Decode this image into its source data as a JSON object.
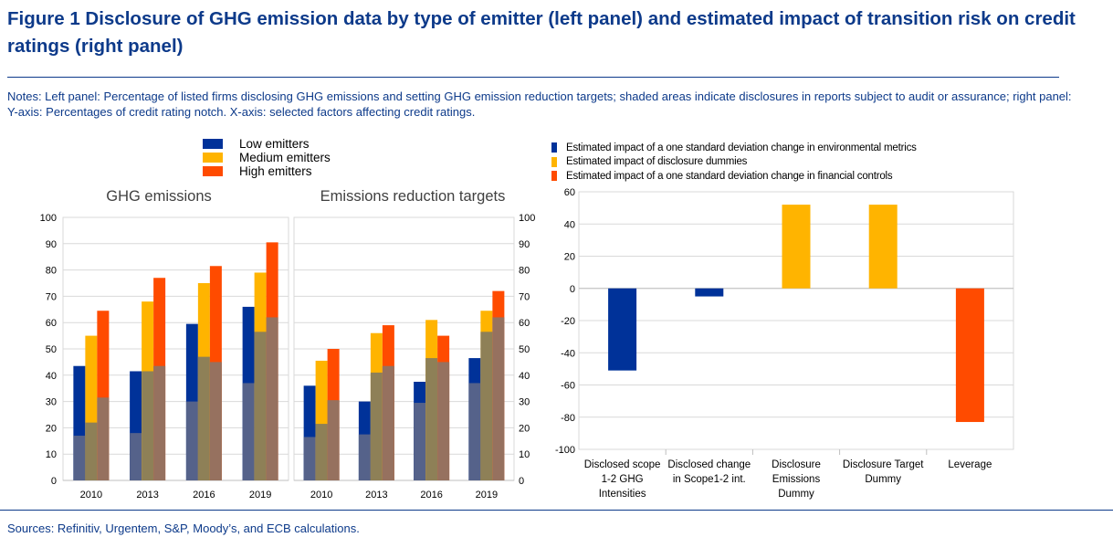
{
  "figure": {
    "title": "Figure 1 Disclosure of GHG emission data by type of emitter (left panel) and estimated impact of transition risk on credit ratings (right panel)",
    "notes": "Notes: Left panel: Percentage of listed firms disclosing GHG emissions and setting GHG emission reduction targets; shaded areas indicate disclosures in reports subject to audit or assurance; right panel: Y-axis: Percentages of credit rating notch. X-axis: selected factors affecting credit ratings.",
    "sources": "Sources: Refinitiv, Urgentem, S&P, Moody’s, and ECB calculations."
  },
  "left_legend": [
    {
      "label": "Low emitters",
      "color": "#003299"
    },
    {
      "label": "Medium emitters",
      "color": "#ffb400"
    },
    {
      "label": "High emitters",
      "color": "#ff4b00"
    }
  ],
  "right_legend": [
    {
      "label": "Estimated impact of a one standard deviation change in  environmental metrics",
      "color": "#003299"
    },
    {
      "label": "Estimated impact of disclosure dummies",
      "color": "#ffb400"
    },
    {
      "label": "Estimated impact of a one standard deviation change in financial controls",
      "color": "#ff4b00"
    }
  ],
  "colors": {
    "low": "#003299",
    "medium": "#ffb400",
    "high": "#ff4b00",
    "shade": "#8c8c8c"
  },
  "chart_data": [
    {
      "type": "bar",
      "title": "GHG emissions",
      "categories": [
        "2010",
        "2013",
        "2016",
        "2019"
      ],
      "series": [
        {
          "name": "Low emitters",
          "values": [
            43.5,
            41.5,
            59.5,
            66
          ],
          "audited": [
            17,
            18,
            30,
            37
          ]
        },
        {
          "name": "Medium emitters",
          "values": [
            55,
            68,
            75,
            79
          ],
          "audited": [
            22,
            41.5,
            47,
            56.5
          ]
        },
        {
          "name": "High emitters",
          "values": [
            64.5,
            77,
            81.5,
            90.5
          ],
          "audited": [
            31.5,
            43.5,
            45,
            62
          ]
        }
      ],
      "ylim": [
        0,
        100
      ],
      "yticks": [
        0,
        10,
        20,
        30,
        40,
        50,
        60,
        70,
        80,
        90,
        100
      ]
    },
    {
      "type": "bar",
      "title": "Emissions reduction targets",
      "categories": [
        "2010",
        "2013",
        "2016",
        "2019"
      ],
      "series": [
        {
          "name": "Low emitters",
          "values": [
            36,
            30,
            37.5,
            46.5
          ],
          "audited": [
            16.5,
            17.5,
            29.5,
            37
          ]
        },
        {
          "name": "Medium emitters",
          "values": [
            45.5,
            56,
            61,
            64.5
          ],
          "audited": [
            21.5,
            41,
            46.5,
            56.5
          ]
        },
        {
          "name": "High emitters",
          "values": [
            50,
            59,
            55,
            72
          ],
          "audited": [
            30.5,
            43.5,
            45,
            62
          ]
        }
      ],
      "ylim": [
        0,
        100
      ],
      "yticks": [
        0,
        10,
        20,
        30,
        40,
        50,
        60,
        70,
        80,
        90,
        100
      ]
    },
    {
      "type": "bar",
      "title": "",
      "categories": [
        "Disclosed scope 1-2 GHG Intensities",
        "Disclosed change in Scope1-2 int.",
        "Disclosure Emissions Dummy",
        "Disclosure Target Dummy",
        "Leverage"
      ],
      "category_lines": [
        [
          "Disclosed scope",
          "1-2 GHG",
          "Intensities"
        ],
        [
          "Disclosed change",
          "in Scope1-2 int."
        ],
        [
          "Disclosure",
          "Emissions",
          "Dummy"
        ],
        [
          "Disclosure Target",
          "Dummy"
        ],
        [
          "Leverage"
        ]
      ],
      "values": [
        -51,
        -5,
        52,
        52,
        -83
      ],
      "bar_series": [
        "environmental",
        "environmental",
        "disclosure",
        "disclosure",
        "financial"
      ],
      "ylim": [
        -100,
        60
      ],
      "yticks": [
        -100,
        -80,
        -60,
        -40,
        -20,
        0,
        20,
        40,
        60
      ]
    }
  ]
}
